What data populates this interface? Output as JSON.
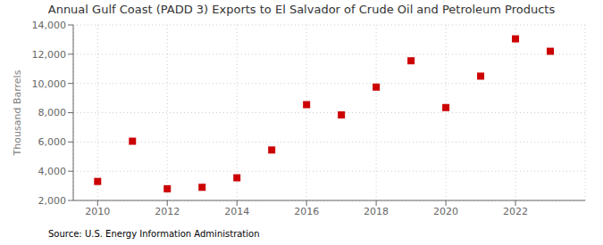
{
  "chart_data": {
    "type": "scatter",
    "title": "Annual Gulf Coast (PADD 3) Exports to El Salvador of Crude Oil and Petroleum Products",
    "y_label": "Thousand Barrels",
    "source": "Source: U.S. Energy Information Administration",
    "x": [
      2010,
      2011,
      2012,
      2013,
      2014,
      2015,
      2016,
      2017,
      2018,
      2019,
      2020,
      2021,
      2022,
      2023
    ],
    "values": [
      3300,
      6050,
      2800,
      2900,
      3550,
      5450,
      8550,
      7850,
      9750,
      11550,
      8350,
      10500,
      13050,
      12200
    ],
    "color": "#cc0000",
    "marker": "square",
    "xlim": [
      2009.3,
      2024.0
    ],
    "xticks": [
      2010,
      2012,
      2014,
      2016,
      2018,
      2020,
      2022
    ],
    "ylim": [
      2000,
      14000
    ],
    "yticks": [
      {
        "value": 2000,
        "label": "2,000"
      },
      {
        "value": 4000,
        "label": "4,000"
      },
      {
        "value": 6000,
        "label": "6,000"
      },
      {
        "value": 8000,
        "label": "8,000"
      },
      {
        "value": 10000,
        "label": "10,000"
      },
      {
        "value": 12000,
        "label": "12,000"
      },
      {
        "value": 14000,
        "label": "14,000"
      }
    ],
    "grid": true
  }
}
